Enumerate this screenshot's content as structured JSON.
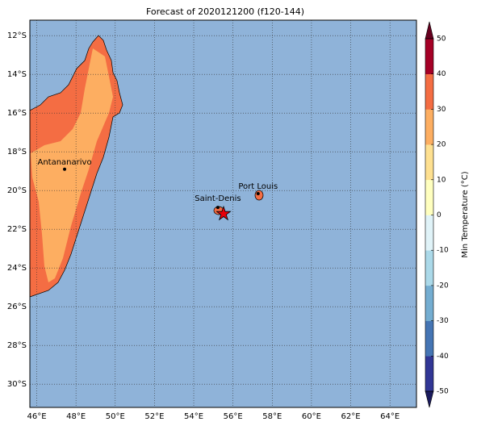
{
  "chart_data": {
    "type": "map",
    "title": "Forecast of 2020121200 (f120-144)",
    "xlim": [
      45.65,
      65.35
    ],
    "ylim": [
      -31.2,
      -11.2
    ],
    "xticks": [
      {
        "value": 46,
        "label": "46°E"
      },
      {
        "value": 48,
        "label": "48°E"
      },
      {
        "value": 50,
        "label": "50°E"
      },
      {
        "value": 52,
        "label": "52°E"
      },
      {
        "value": 54,
        "label": "54°E"
      },
      {
        "value": 56,
        "label": "56°E"
      },
      {
        "value": 58,
        "label": "58°E"
      },
      {
        "value": 60,
        "label": "60°E"
      },
      {
        "value": 62,
        "label": "62°E"
      },
      {
        "value": 64,
        "label": "64°E"
      }
    ],
    "yticks": [
      {
        "value": -12,
        "label": "12°S"
      },
      {
        "value": -14,
        "label": "14°S"
      },
      {
        "value": -16,
        "label": "16°S"
      },
      {
        "value": -18,
        "label": "18°S"
      },
      {
        "value": -20,
        "label": "20°S"
      },
      {
        "value": -22,
        "label": "22°S"
      },
      {
        "value": -24,
        "label": "24°S"
      },
      {
        "value": -26,
        "label": "26°S"
      },
      {
        "value": -28,
        "label": "28°S"
      },
      {
        "value": -30,
        "label": "30°S"
      }
    ],
    "grid": true,
    "cities": [
      {
        "name": "Antananarivo",
        "lon": 47.42,
        "lat": -18.9
      },
      {
        "name": "Saint-Denis",
        "lon": 55.23,
        "lat": -20.87
      },
      {
        "name": "Port Louis",
        "lon": 57.28,
        "lat": -20.16
      }
    ],
    "marker": {
      "lon": 55.52,
      "lat": -21.2
    },
    "colorbar": {
      "label": "Min Temperature (°C)",
      "lim": [
        -50,
        50
      ],
      "ticks": [
        -50,
        -40,
        -30,
        -20,
        -10,
        0,
        10,
        20,
        30,
        40,
        50
      ],
      "colors": [
        "#313695",
        "#4575b4",
        "#74add1",
        "#abd9e9",
        "#e0f3f8",
        "#ffffbf",
        "#fee090",
        "#fdae61",
        "#f46d43",
        "#a50026"
      ],
      "under": "#1b1b5e",
      "over": "#67001f"
    }
  }
}
